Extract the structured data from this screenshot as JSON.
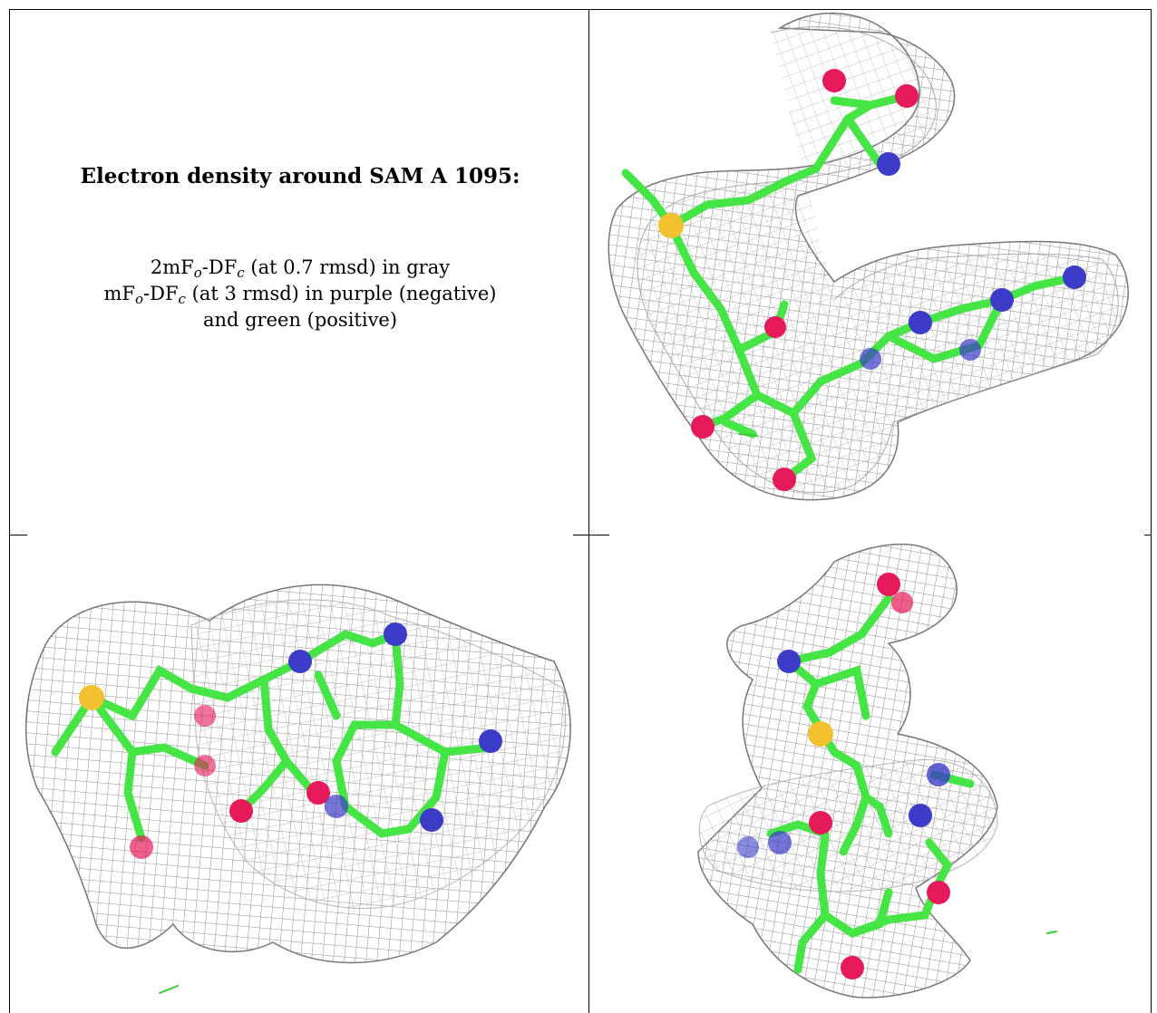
{
  "caption": {
    "title": "Electron density around SAM A 1095:",
    "line1": {
      "pre": "2mF",
      "sub1": "o",
      "mid": "-DF",
      "sub2": "c",
      "post": " (at 0.7 rmsd) in gray"
    },
    "line2": {
      "pre": "mF",
      "sub1": "o",
      "mid": "-DF",
      "sub2": "c",
      "post": " (at 3 rmsd) in purple (negative)"
    },
    "line3": "and green (positive)"
  },
  "colors": {
    "mesh": "#9a9a9a",
    "carbon": "#44e544",
    "nitrogen": "#3c3cc8",
    "oxygen": "#e6195a",
    "sulfur": "#f2c12e",
    "difference_positive": "#33cc33"
  },
  "views": [
    {
      "name": "top-right-view"
    },
    {
      "name": "bottom-left-view"
    },
    {
      "name": "bottom-right-view"
    }
  ]
}
